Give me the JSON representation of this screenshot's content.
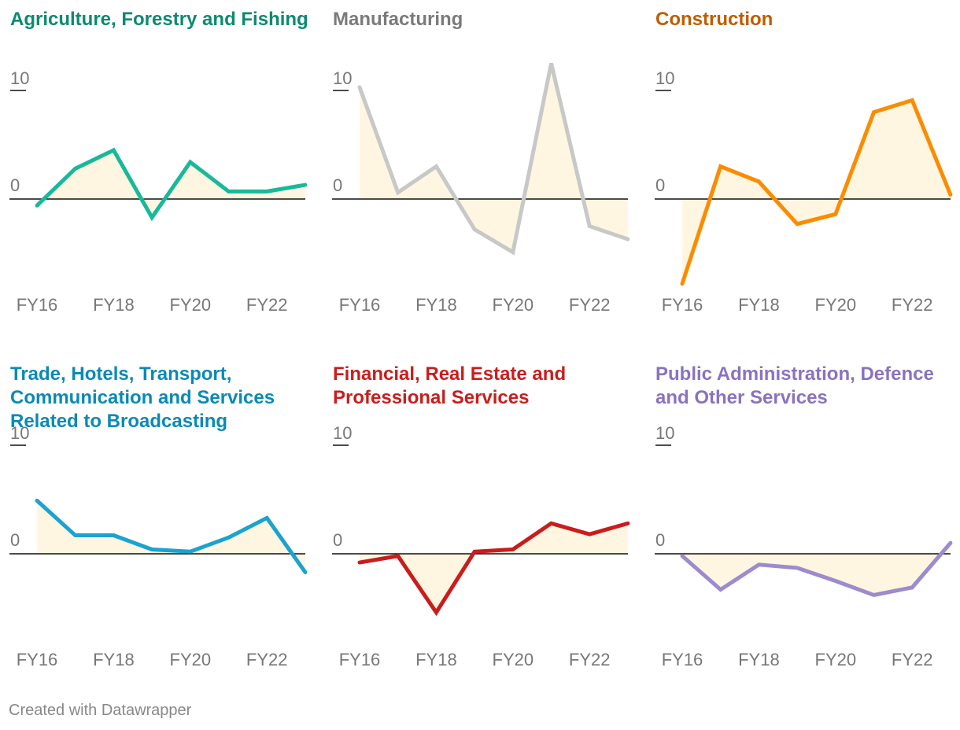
{
  "chart_data": [
    {
      "type": "area",
      "title": "Agriculture, Forestry and Fishing",
      "color": "#18b99a",
      "title_color": "#0d8a6f",
      "x": [
        "FY16",
        "FY17",
        "FY18",
        "FY19",
        "FY20",
        "FY21",
        "FY22",
        "FY23"
      ],
      "values": [
        -0.6,
        2.8,
        4.5,
        -1.7,
        3.4,
        0.7,
        0.7,
        1.3
      ],
      "x_tick_labels": [
        "FY16",
        "FY18",
        "FY20",
        "FY22"
      ],
      "y_tick_labels": [
        "10",
        "0"
      ],
      "ylim": [
        -8,
        12.5
      ]
    },
    {
      "type": "area",
      "title": "Manufacturing",
      "color": "#c8c8c8",
      "title_color": "#7a7a7a",
      "x": [
        "FY16",
        "FY17",
        "FY18",
        "FY19",
        "FY20",
        "FY21",
        "FY22",
        "FY23"
      ],
      "values": [
        10.3,
        0.6,
        3.0,
        -2.8,
        -4.9,
        12.5,
        -2.5,
        -3.7
      ],
      "x_tick_labels": [
        "FY16",
        "FY18",
        "FY20",
        "FY22"
      ],
      "y_tick_labels": [
        "10",
        "0"
      ],
      "ylim": [
        -8,
        12.5
      ]
    },
    {
      "type": "area",
      "title": "Construction",
      "color": "#fb8c00",
      "title_color": "#c15c00",
      "x": [
        "FY16",
        "FY17",
        "FY18",
        "FY19",
        "FY20",
        "FY21",
        "FY22",
        "FY23"
      ],
      "values": [
        -7.8,
        3.0,
        1.6,
        -2.3,
        -1.4,
        8.0,
        9.1,
        0.4
      ],
      "x_tick_labels": [
        "FY16",
        "FY18",
        "FY20",
        "FY22"
      ],
      "y_tick_labels": [
        "10",
        "0"
      ],
      "ylim": [
        -8,
        12.5
      ]
    },
    {
      "type": "area",
      "title": "Trade, Hotels, Transport, Communication and Services Related to Broadcasting",
      "color": "#1ba3cf",
      "title_color": "#0a8ab5",
      "x": [
        "FY16",
        "FY17",
        "FY18",
        "FY19",
        "FY20",
        "FY21",
        "FY22",
        "FY23"
      ],
      "values": [
        4.9,
        1.7,
        1.7,
        0.4,
        0.2,
        1.5,
        3.3,
        -1.7
      ],
      "x_tick_labels": [
        "FY16",
        "FY18",
        "FY20",
        "FY22"
      ],
      "y_tick_labels": [
        "10",
        "0"
      ],
      "ylim": [
        -8,
        12.5
      ]
    },
    {
      "type": "area",
      "title": "Financial, Real Estate and Professional Services",
      "color": "#c91d1d",
      "title_color": "#c91d1d",
      "x": [
        "FY16",
        "FY17",
        "FY18",
        "FY19",
        "FY20",
        "FY21",
        "FY22",
        "FY23"
      ],
      "values": [
        -0.8,
        -0.2,
        -5.4,
        0.2,
        0.4,
        2.8,
        1.8,
        2.8
      ],
      "x_tick_labels": [
        "FY16",
        "FY18",
        "FY20",
        "FY22"
      ],
      "y_tick_labels": [
        "10",
        "0"
      ],
      "ylim": [
        -8,
        12.5
      ]
    },
    {
      "type": "area",
      "title": "Public Administration, Defence and Other Services",
      "color": "#9c8bce",
      "title_color": "#8a72bf",
      "x": [
        "FY16",
        "FY17",
        "FY18",
        "FY19",
        "FY20",
        "FY21",
        "FY22",
        "FY23"
      ],
      "values": [
        -0.2,
        -3.3,
        -1.0,
        -1.3,
        -2.5,
        -3.8,
        -3.1,
        1.0
      ],
      "x_tick_labels": [
        "FY16",
        "FY18",
        "FY20",
        "FY22"
      ],
      "y_tick_labels": [
        "10",
        "0"
      ],
      "ylim": [
        -8,
        12.5
      ]
    }
  ],
  "fill_color": "#fff6e1",
  "baseline_color": "#111111",
  "footer": "Created with Datawrapper"
}
